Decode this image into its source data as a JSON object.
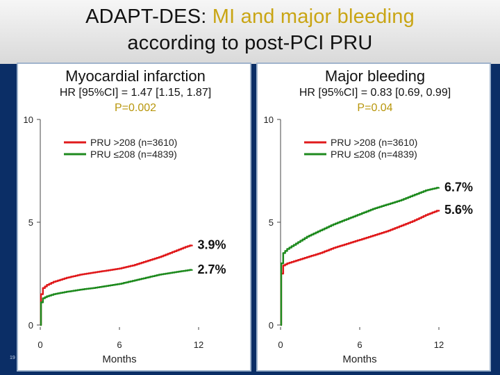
{
  "title": {
    "prefix": "ADAPT-DES: ",
    "accent": "MI and major bleeding",
    "line2": "according to post-PCI PRU"
  },
  "page_number": "19",
  "colors": {
    "high_pru": "#e0191b",
    "low_pru": "#1e8a1e",
    "accent": "#c9a514"
  },
  "chart_data": [
    {
      "type": "line",
      "title": "Myocardial infarction",
      "hr_text": "HR [95%CI] = 1.47 [1.15, 1.87]",
      "p_text": "P=0.002",
      "xlabel": "Months",
      "ylabel": "",
      "xlim": [
        0,
        12
      ],
      "ylim": [
        0,
        10
      ],
      "xticks": [
        "0",
        "6",
        "12"
      ],
      "yticks": [
        "0",
        "5",
        "10"
      ],
      "legend_position": "top-left",
      "series": [
        {
          "name": "PRU >208 (n=3610)",
          "color": "#e0191b",
          "end_label": "3.9%",
          "x": [
            0,
            0.05,
            0.2,
            0.5,
            1,
            2,
            3,
            4,
            5,
            6,
            7,
            8,
            9,
            10,
            11,
            11.5
          ],
          "y": [
            0,
            1.5,
            1.8,
            1.95,
            2.1,
            2.3,
            2.45,
            2.55,
            2.65,
            2.75,
            2.9,
            3.1,
            3.3,
            3.55,
            3.8,
            3.9
          ]
        },
        {
          "name": "PRU ≤208 (n=4839)",
          "color": "#1e8a1e",
          "end_label": "2.7%",
          "x": [
            0,
            0.05,
            0.2,
            0.5,
            1,
            2,
            3,
            4,
            5,
            6,
            7,
            8,
            9,
            10,
            11,
            11.5
          ],
          "y": [
            0,
            1.1,
            1.3,
            1.4,
            1.5,
            1.62,
            1.72,
            1.8,
            1.9,
            2.0,
            2.15,
            2.3,
            2.45,
            2.55,
            2.65,
            2.7
          ]
        }
      ]
    },
    {
      "type": "line",
      "title": "Major bleeding",
      "hr_text": "HR [95%CI] = 0.83 [0.69, 0.99]",
      "p_text": "P=0.04",
      "xlabel": "Months",
      "ylabel": "",
      "xlim": [
        0,
        12
      ],
      "ylim": [
        0,
        10
      ],
      "xticks": [
        "0",
        "6",
        "12"
      ],
      "yticks": [
        "0",
        "5",
        "10"
      ],
      "legend_position": "top-right",
      "series": [
        {
          "name": "PRU >208 (n=3610)",
          "color": "#e0191b",
          "end_label": "5.6%",
          "x": [
            0,
            0.05,
            0.2,
            0.5,
            1,
            2,
            3,
            4,
            5,
            6,
            7,
            8,
            9,
            10,
            11,
            12
          ],
          "y": [
            0,
            2.5,
            2.9,
            3.0,
            3.1,
            3.3,
            3.5,
            3.75,
            3.95,
            4.15,
            4.35,
            4.55,
            4.8,
            5.05,
            5.35,
            5.6
          ]
        },
        {
          "name": "PRU ≤208 (n=4839)",
          "color": "#1e8a1e",
          "end_label": "6.7%",
          "x": [
            0,
            0.05,
            0.2,
            0.5,
            1,
            2,
            3,
            4,
            5,
            6,
            7,
            8,
            9,
            10,
            11,
            12
          ],
          "y": [
            0,
            3.0,
            3.5,
            3.7,
            3.9,
            4.3,
            4.6,
            4.9,
            5.15,
            5.4,
            5.65,
            5.85,
            6.05,
            6.3,
            6.55,
            6.7
          ]
        }
      ]
    }
  ]
}
